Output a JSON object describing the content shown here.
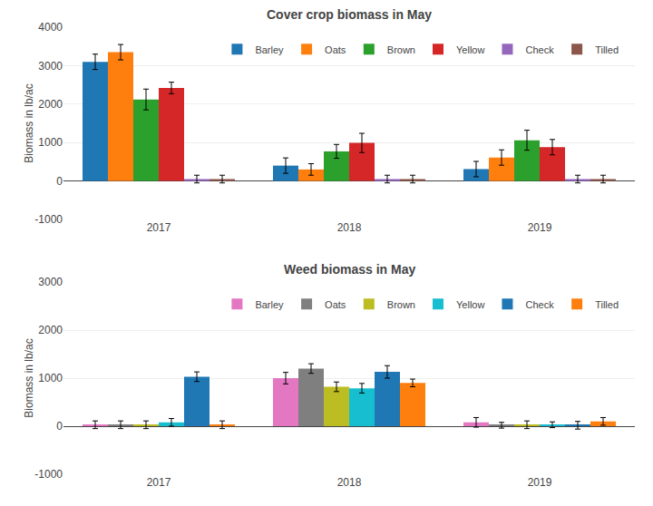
{
  "chart_data": [
    {
      "type": "bar",
      "title": "Cover crop biomass in May",
      "ylabel": "Biomass in lb/ac",
      "categories": [
        "2017",
        "2018",
        "2019"
      ],
      "series": [
        {
          "name": "Barley",
          "values": [
            3100,
            400,
            310
          ],
          "errors": [
            200,
            200,
            200
          ]
        },
        {
          "name": "Oats",
          "values": [
            3350,
            300,
            610
          ],
          "errors": [
            200,
            150,
            200
          ]
        },
        {
          "name": "Brown",
          "values": [
            2120,
            770,
            1060
          ],
          "errors": [
            270,
            180,
            260
          ]
        },
        {
          "name": "Yellow",
          "values": [
            2420,
            990,
            880
          ],
          "errors": [
            150,
            250,
            200
          ]
        },
        {
          "name": "Check",
          "values": [
            50,
            50,
            50
          ],
          "errors": [
            100,
            100,
            100
          ]
        },
        {
          "name": "Tilled",
          "values": [
            50,
            50,
            50
          ],
          "errors": [
            100,
            100,
            100
          ]
        }
      ],
      "ylim": [
        -1000,
        4000
      ],
      "yticks": [
        -1000,
        0,
        1000,
        2000,
        3000,
        4000
      ],
      "grid": true,
      "legend": "upper right"
    },
    {
      "type": "bar",
      "title": "Weed biomass in May",
      "ylabel": "Biomass in lb/ac",
      "categories": [
        "2017",
        "2018",
        "2019"
      ],
      "series": [
        {
          "name": "Barley",
          "values": [
            30,
            1000,
            80
          ],
          "errors": [
            80,
            120,
            100
          ]
        },
        {
          "name": "Oats",
          "values": [
            30,
            1200,
            20
          ],
          "errors": [
            80,
            100,
            60
          ]
        },
        {
          "name": "Brown",
          "values": [
            30,
            820,
            30
          ],
          "errors": [
            80,
            100,
            80
          ]
        },
        {
          "name": "Yellow",
          "values": [
            80,
            790,
            30
          ],
          "errors": [
            80,
            100,
            60
          ]
        },
        {
          "name": "Check",
          "values": [
            1030,
            1130,
            20
          ],
          "errors": [
            100,
            130,
            80
          ]
        },
        {
          "name": "Tilled",
          "values": [
            30,
            900,
            100
          ],
          "errors": [
            80,
            80,
            80
          ]
        }
      ],
      "ylim": [
        -1000,
        3000
      ],
      "yticks": [
        -1000,
        0,
        1000,
        2000,
        3000
      ],
      "grid": true,
      "legend": "upper right"
    }
  ]
}
